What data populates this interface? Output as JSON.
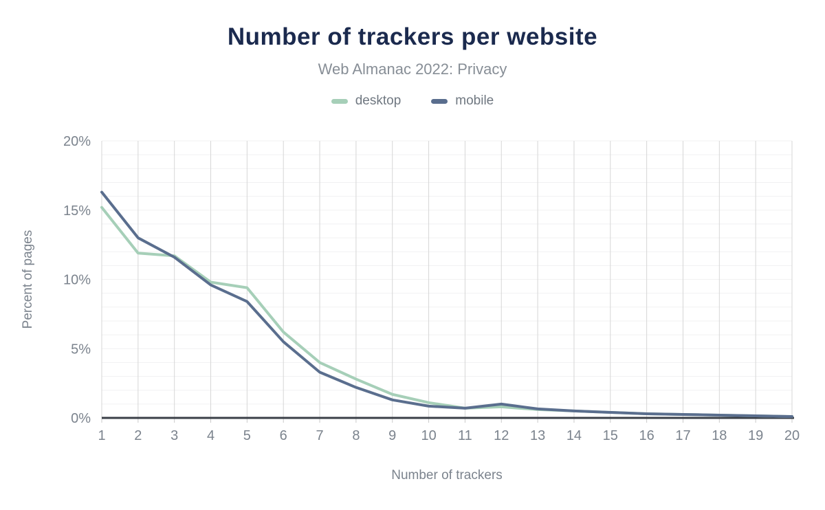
{
  "header": {
    "title": "Number of trackers per website",
    "subtitle": "Web Almanac 2022: Privacy"
  },
  "legend": {
    "desktop_label": "desktop",
    "mobile_label": "mobile"
  },
  "colors": {
    "desktop": "#a6cfb8",
    "mobile": "#5a6e8e",
    "title_text": "#1b2a4e",
    "subtitle_text": "#878e96",
    "axis_text": "#7b838d",
    "axis_line": "#3a3f47",
    "tick_mark": "#c9c9c9",
    "grid_vertical": "#d6d6d6",
    "grid_horizontal": "#f1f1f2",
    "background": "#ffffff"
  },
  "chart_data": {
    "type": "line",
    "title": "Number of trackers per website",
    "subtitle": "Web Almanac 2022: Privacy",
    "xlabel": "Number of trackers",
    "ylabel": "Percent of pages",
    "x": [
      1,
      2,
      3,
      4,
      5,
      6,
      7,
      8,
      9,
      10,
      11,
      12,
      13,
      14,
      15,
      16,
      17,
      18,
      19,
      20
    ],
    "series": [
      {
        "name": "desktop",
        "color": "#a6cfb8",
        "values": [
          15.2,
          11.9,
          11.7,
          9.8,
          9.4,
          6.2,
          4.0,
          2.8,
          1.7,
          1.1,
          0.7,
          0.8,
          0.6,
          0.5,
          0.4,
          0.3,
          0.25,
          0.2,
          0.15,
          0.1
        ]
      },
      {
        "name": "mobile",
        "color": "#5a6e8e",
        "values": [
          16.3,
          13.0,
          11.6,
          9.6,
          8.4,
          5.5,
          3.3,
          2.2,
          1.3,
          0.85,
          0.7,
          1.0,
          0.65,
          0.5,
          0.4,
          0.3,
          0.25,
          0.2,
          0.15,
          0.1
        ]
      }
    ],
    "ylim": [
      0,
      20
    ],
    "yticks": [
      0,
      5,
      10,
      15,
      20
    ],
    "ytick_suffix": "%",
    "minor_y_step": 1,
    "grid": true,
    "legend_position": "top"
  }
}
